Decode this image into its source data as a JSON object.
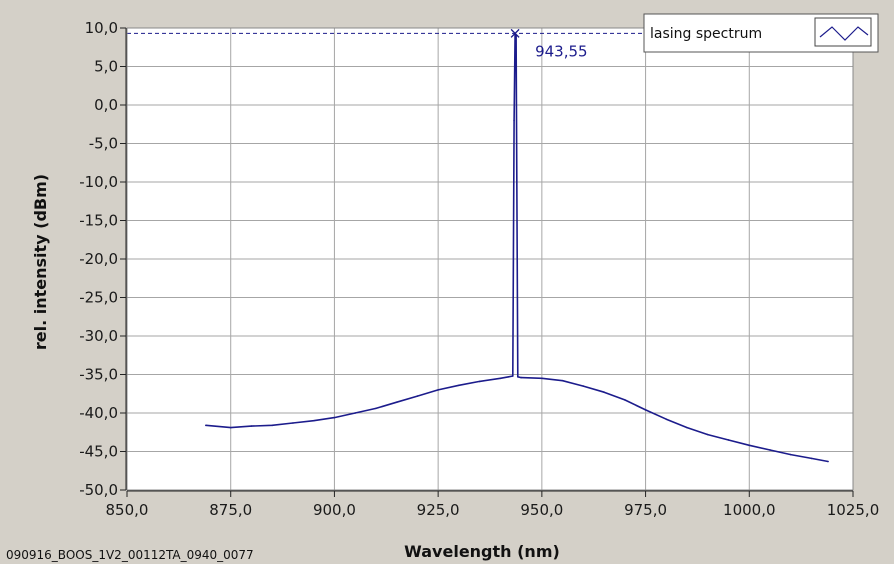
{
  "caption": "090916_BOOS_1V2_00112TA_0940_0077",
  "legend": {
    "label": "lasing spectrum",
    "placement": "top-right"
  },
  "cursor": {
    "label": "943,55",
    "x": 943.55,
    "y": 9.3
  },
  "colors": {
    "series": "#1c1c8c",
    "grid": "#a6a6a6",
    "plot_bg": "#ffffff",
    "frame": "#d4d0c8",
    "cursor": "#1c1c8c"
  },
  "chart_data": {
    "type": "line",
    "title": "",
    "xlabel": "Wavelength (nm)",
    "ylabel": "rel. intensity (dBm)",
    "xlim": [
      850,
      1025
    ],
    "ylim": [
      -50,
      10
    ],
    "grid": true,
    "x_ticks": [
      850,
      875,
      900,
      925,
      950,
      975,
      1000,
      1025
    ],
    "x_tick_labels": [
      "850,0",
      "875,0",
      "900,0",
      "925,0",
      "950,0",
      "975,0",
      "1000,0",
      "1025,0"
    ],
    "y_ticks": [
      10,
      5,
      0,
      -5,
      -10,
      -15,
      -20,
      -25,
      -30,
      -35,
      -40,
      -45,
      -50
    ],
    "y_tick_labels": [
      "10,0",
      "5,0",
      "0,0",
      "-5,0",
      "-10,0",
      "-15,0",
      "-20,0",
      "-25,0",
      "-30,0",
      "-35,0",
      "-40,0",
      "-45,0",
      "-50,0"
    ],
    "series": [
      {
        "name": "lasing spectrum",
        "x": [
          869,
          875,
          880,
          885,
          890,
          895,
          900,
          905,
          910,
          915,
          920,
          925,
          930,
          935,
          940,
          942,
          943,
          943.3,
          943.55,
          943.8,
          944.2,
          945,
          950,
          955,
          960,
          965,
          970,
          975,
          980,
          985,
          990,
          995,
          1000,
          1005,
          1010,
          1015,
          1019
        ],
        "y": [
          -41.6,
          -41.9,
          -41.7,
          -41.6,
          -41.3,
          -41.0,
          -40.6,
          -40.0,
          -39.4,
          -38.6,
          -37.8,
          -37.0,
          -36.4,
          -35.9,
          -35.5,
          -35.3,
          -35.2,
          -2.0,
          9.3,
          9.0,
          -35.3,
          -35.4,
          -35.5,
          -35.8,
          -36.5,
          -37.3,
          -38.3,
          -39.6,
          -40.8,
          -41.9,
          -42.8,
          -43.5,
          -44.2,
          -44.8,
          -45.4,
          -45.9,
          -46.3
        ]
      }
    ]
  }
}
